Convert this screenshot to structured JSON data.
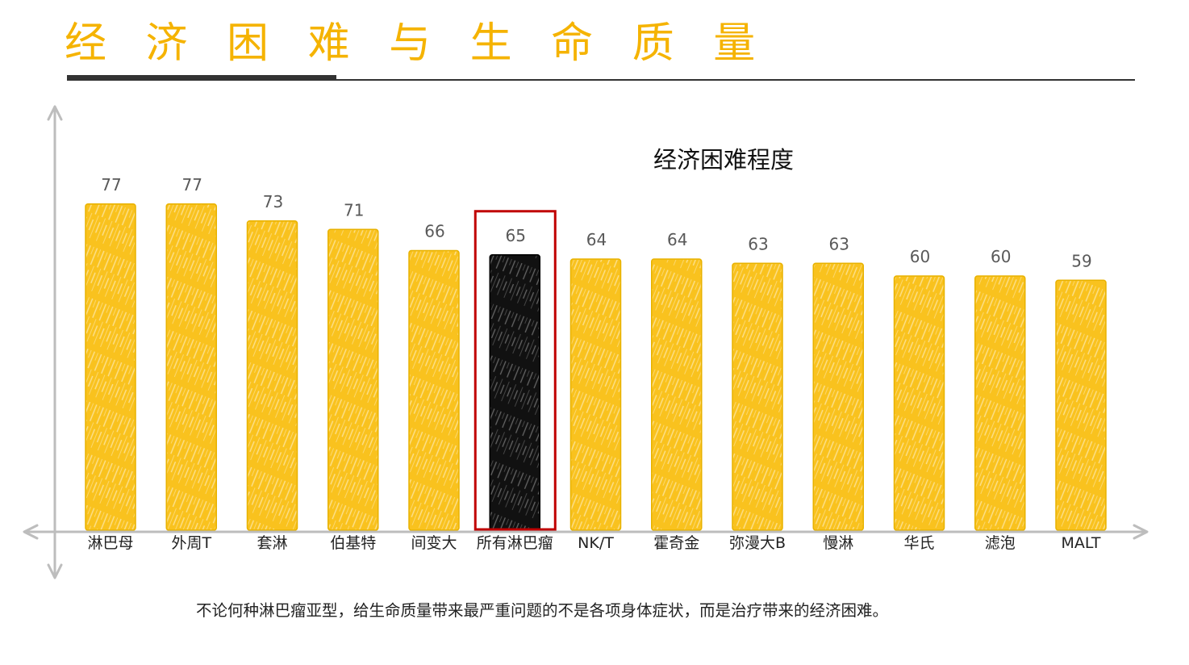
{
  "slide": {
    "title": "经 济 困 难 与 生 命 质 量",
    "caption": "不论何种淋巴瘤亚型，给生命质量带来最严重问题的不是各项身体症状，而是治疗带来的经济困难。",
    "title_color": "#F5B300",
    "rule_color": "#333333"
  },
  "chart_data": {
    "type": "bar",
    "title": "经济困难程度",
    "categories": [
      "淋巴母",
      "外周T",
      "套淋",
      "伯基特",
      "间变大",
      "所有淋巴瘤",
      "NK/T",
      "霍奇金",
      "弥漫大B",
      "慢淋",
      "华氏",
      "滤泡",
      "MALT"
    ],
    "values": [
      77,
      77,
      73,
      71,
      66,
      65,
      64,
      64,
      63,
      63,
      60,
      60,
      59
    ],
    "ylim": [
      0,
      100
    ],
    "grid": false,
    "show_legend": false,
    "bar_color": "#F9C21E",
    "bar_edge_color": "#E8B200",
    "highlight_index": 5,
    "highlight_color": "#111111",
    "highlight_box_color": "#C00000",
    "axis_color": "#BDBDBD"
  }
}
